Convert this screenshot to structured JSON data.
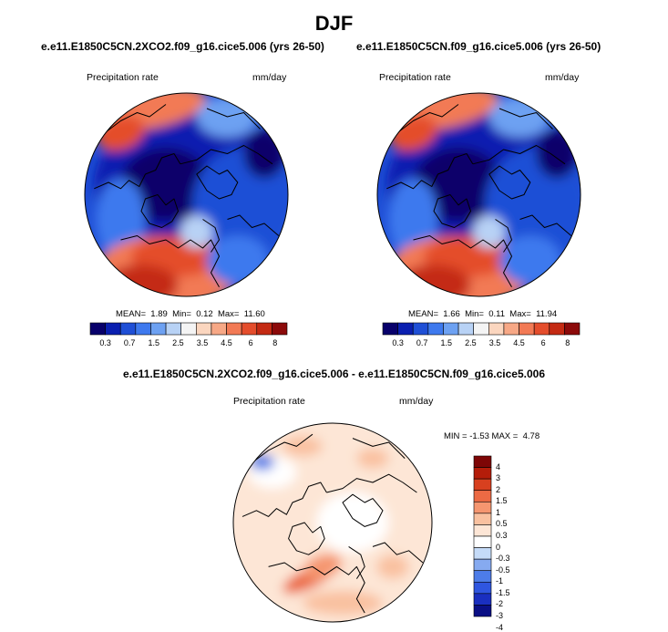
{
  "title": "DJF",
  "colors": {
    "seq": [
      "#08006b",
      "#0a1fb0",
      "#1f4fd6",
      "#3e79ee",
      "#6da1f2",
      "#b8d2f5",
      "#f4f4f4",
      "#fbd6bf",
      "#f7a886",
      "#f27a55",
      "#e44d2c",
      "#c42a13",
      "#8c0a0a"
    ],
    "diff": [
      "#0a0f85",
      "#1a2fc0",
      "#2f56e0",
      "#4d7ce8",
      "#86aaf0",
      "#c5dbf8",
      "#ffffff",
      "#fde6d6",
      "#f9c1a0",
      "#f59670",
      "#ec6a44",
      "#d8401f",
      "#b41d0a",
      "#7e0606"
    ]
  },
  "panels": [
    {
      "title": "e.e11.E1850C5CN.2XCO2.f09_g16.cice5.006 (yrs 26-50)",
      "variable": "Precipitation rate",
      "units": "mm/day",
      "mean": "1.89",
      "min": "0.12",
      "max": "11.60",
      "colorbar_ticks": [
        "0.3",
        "0.7",
        "1.5",
        "2.5",
        "3.5",
        "4.5",
        "6",
        "8"
      ]
    },
    {
      "title": "e.e11.E1850C5CN.f09_g16.cice5.006 (yrs 26-50)",
      "variable": "Precipitation rate",
      "units": "mm/day",
      "mean": "1.66",
      "min": "0.11",
      "max": "11.94",
      "colorbar_ticks": [
        "0.3",
        "0.7",
        "1.5",
        "2.5",
        "3.5",
        "4.5",
        "6",
        "8"
      ]
    }
  ],
  "diff_panel": {
    "title": "e.e11.E1850C5CN.2XCO2.f09_g16.cice5.006 - e.e11.E1850C5CN.f09_g16.cice5.006",
    "variable": "Precipitation rate",
    "units": "mm/day",
    "min": "-1.53",
    "max": "4.78",
    "colorbar_ticks": [
      "4",
      "3",
      "2",
      "1.5",
      "1",
      "0.5",
      "0.3",
      "0",
      "-0.3",
      "-0.5",
      "-1",
      "-1.5",
      "-2",
      "-3",
      "-4"
    ]
  }
}
